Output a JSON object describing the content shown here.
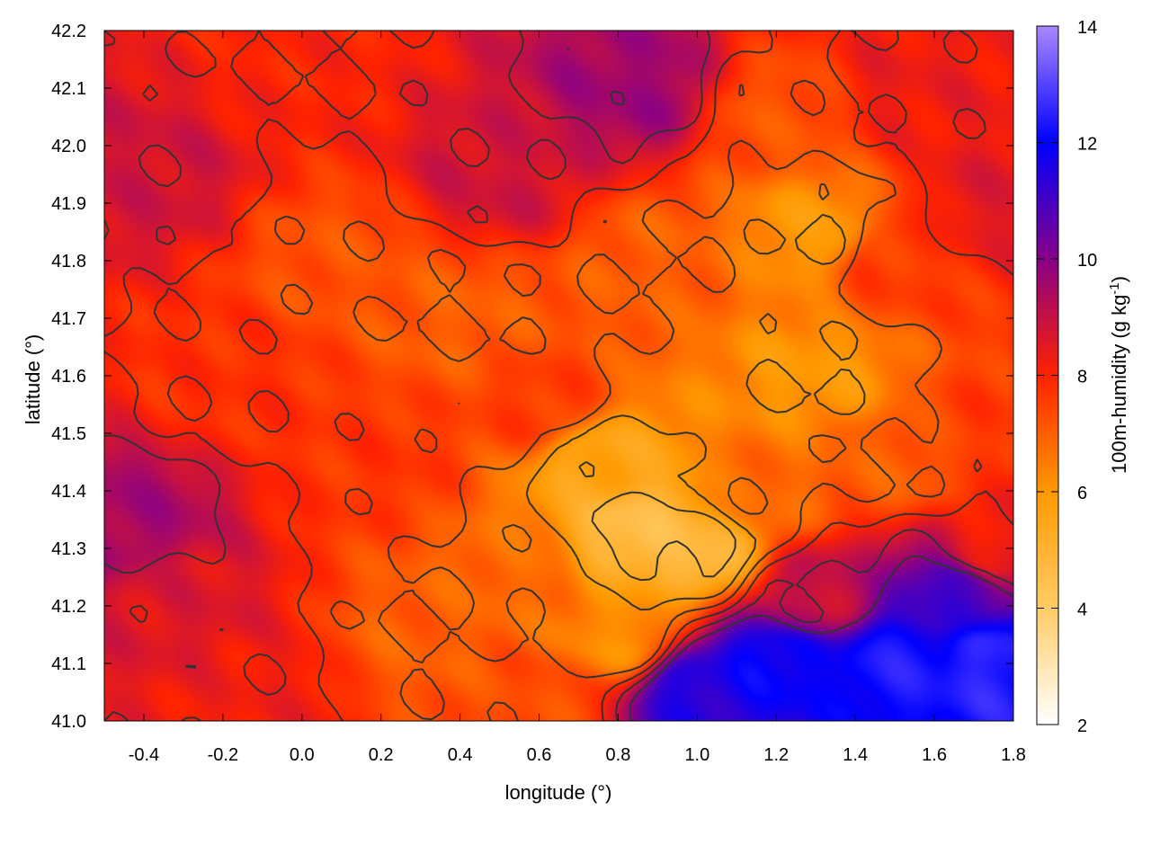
{
  "chart_data": {
    "type": "heatmap",
    "title": "",
    "xlabel": "longitude (°)",
    "ylabel": "latitude (°)",
    "colorbar_label": "100m-humidity (g kg",
    "colorbar_label_sup": "-1",
    "colorbar_label_end": ")",
    "xlim": [
      -0.5,
      1.8
    ],
    "ylim": [
      41.0,
      42.2
    ],
    "x_ticks": [
      "-0.4",
      "-0.2",
      "0.0",
      "0.2",
      "0.4",
      "0.6",
      "0.8",
      "1.0",
      "1.2",
      "1.4",
      "1.6",
      "1.8"
    ],
    "x_tick_values": [
      -0.4,
      -0.2,
      0.0,
      0.2,
      0.4,
      0.6,
      0.8,
      1.0,
      1.2,
      1.4,
      1.6,
      1.8
    ],
    "y_ticks": [
      "41.0",
      "41.1",
      "41.2",
      "41.3",
      "41.4",
      "41.5",
      "41.6",
      "41.7",
      "41.8",
      "41.9",
      "42.0",
      "42.1",
      "42.2"
    ],
    "y_tick_values": [
      41.0,
      41.1,
      41.2,
      41.3,
      41.4,
      41.5,
      41.6,
      41.7,
      41.8,
      41.9,
      42.0,
      42.1,
      42.2
    ],
    "colorbar_range": [
      2,
      14
    ],
    "colorbar_ticks": [
      "2",
      "4",
      "6",
      "8",
      "10",
      "12",
      "14"
    ],
    "colorbar_tick_values": [
      2,
      4,
      6,
      8,
      10,
      12,
      14
    ],
    "colorscale": [
      {
        "v": 2,
        "color": "#ffffff"
      },
      {
        "v": 4,
        "color": "#ffcc66"
      },
      {
        "v": 6,
        "color": "#ff9900"
      },
      {
        "v": 8,
        "color": "#ff2200"
      },
      {
        "v": 10,
        "color": "#880088"
      },
      {
        "v": 12,
        "color": "#0000ff"
      },
      {
        "v": 14,
        "color": "#aa88ff"
      }
    ],
    "field_description": "Gridded humidity (g/kg) over the domain; dry (~4-5) core near lon 0.7-1.1, lat 41.25-41.45; moist (~11-13) sea area in the south-east corner; ~7-9 elsewhere.",
    "anchors": [
      {
        "lon": -0.45,
        "lat": 41.35,
        "value": 9.5
      },
      {
        "lon": -0.3,
        "lat": 41.2,
        "value": 8.6
      },
      {
        "lon": -0.1,
        "lat": 41.05,
        "value": 8.2
      },
      {
        "lon": -0.4,
        "lat": 41.95,
        "value": 8.8
      },
      {
        "lon": -0.2,
        "lat": 41.6,
        "value": 7.8
      },
      {
        "lon": 0.0,
        "lat": 42.15,
        "value": 8.0
      },
      {
        "lon": 0.1,
        "lat": 41.8,
        "value": 7.2
      },
      {
        "lon": 0.2,
        "lat": 41.45,
        "value": 7.7
      },
      {
        "lon": 0.3,
        "lat": 41.15,
        "value": 7.0
      },
      {
        "lon": 0.5,
        "lat": 41.95,
        "value": 8.8
      },
      {
        "lon": 0.4,
        "lat": 41.7,
        "value": 7.0
      },
      {
        "lon": 0.6,
        "lat": 41.55,
        "value": 7.6
      },
      {
        "lon": 0.55,
        "lat": 41.25,
        "value": 6.8
      },
      {
        "lon": 0.6,
        "lat": 41.05,
        "value": 7.3
      },
      {
        "lon": 0.85,
        "lat": 42.1,
        "value": 9.6
      },
      {
        "lon": 0.9,
        "lat": 41.8,
        "value": 7.0
      },
      {
        "lon": 0.75,
        "lat": 41.45,
        "value": 5.6
      },
      {
        "lon": 0.85,
        "lat": 41.33,
        "value": 4.6
      },
      {
        "lon": 1.0,
        "lat": 41.3,
        "value": 4.8
      },
      {
        "lon": 0.8,
        "lat": 41.15,
        "value": 6.2
      },
      {
        "lon": 1.0,
        "lat": 41.05,
        "value": 11.5
      },
      {
        "lon": 1.2,
        "lat": 41.1,
        "value": 12.0
      },
      {
        "lon": 1.5,
        "lat": 41.1,
        "value": 12.3
      },
      {
        "lon": 1.75,
        "lat": 41.1,
        "value": 12.5
      },
      {
        "lon": 1.65,
        "lat": 41.22,
        "value": 11.0
      },
      {
        "lon": 1.3,
        "lat": 41.22,
        "value": 9.0
      },
      {
        "lon": 1.15,
        "lat": 41.4,
        "value": 6.8
      },
      {
        "lon": 1.3,
        "lat": 41.6,
        "value": 6.0
      },
      {
        "lon": 1.3,
        "lat": 41.85,
        "value": 6.0
      },
      {
        "lon": 1.2,
        "lat": 42.05,
        "value": 7.2
      },
      {
        "lon": 1.55,
        "lat": 42.1,
        "value": 8.3
      },
      {
        "lon": 1.5,
        "lat": 41.8,
        "value": 7.6
      },
      {
        "lon": 1.5,
        "lat": 41.45,
        "value": 7.0
      },
      {
        "lon": 1.75,
        "lat": 41.5,
        "value": 7.6
      },
      {
        "lon": 1.75,
        "lat": 41.9,
        "value": 8.5
      },
      {
        "lon": 1.75,
        "lat": 41.3,
        "value": 8.2
      }
    ]
  }
}
